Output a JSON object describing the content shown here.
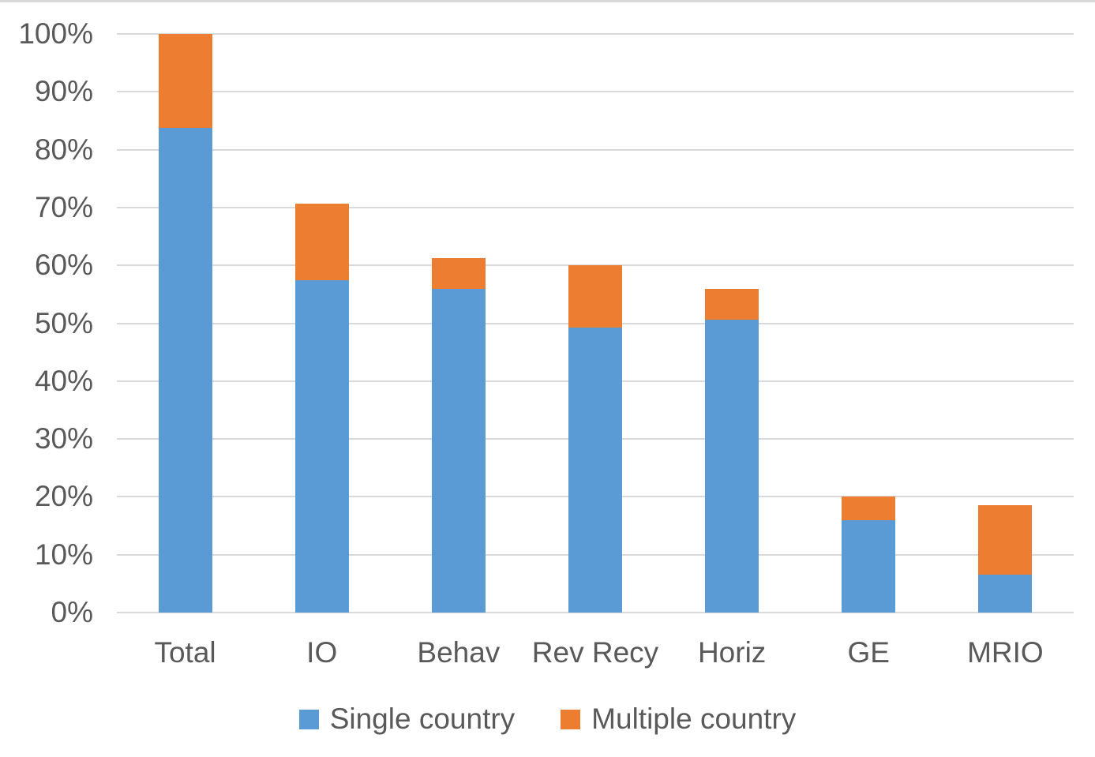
{
  "chart_data": {
    "type": "bar",
    "stacked": true,
    "title": "",
    "xlabel": "",
    "ylabel": "",
    "categories": [
      "Total",
      "IO",
      "Behav",
      "Rev Recy",
      "Horiz",
      "GE",
      "MRIO"
    ],
    "series": [
      {
        "name": "Single country",
        "color": "#5B9BD5",
        "values": [
          83.8,
          57.4,
          56.0,
          49.3,
          50.6,
          16.0,
          6.6
        ]
      },
      {
        "name": "Multiple country",
        "color": "#ED7D31",
        "values": [
          16.2,
          13.3,
          5.3,
          10.7,
          5.4,
          4.0,
          12.0
        ]
      }
    ],
    "stack_totals": [
      100.0,
      70.7,
      61.3,
      60.0,
      56.0,
      20.0,
      18.6
    ],
    "ylim": [
      0,
      100
    ],
    "ytick_step": 10,
    "ytick_labels": [
      "0%",
      "10%",
      "20%",
      "30%",
      "40%",
      "50%",
      "60%",
      "70%",
      "80%",
      "90%",
      "100%"
    ],
    "grid": true,
    "gridline_color": "#D9D9D9",
    "text_color": "#595959",
    "background_color": "#FFFFFF",
    "legend_position": "bottom"
  }
}
